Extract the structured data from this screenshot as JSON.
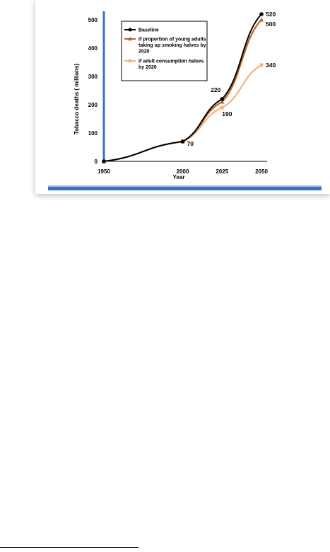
{
  "chart_data": {
    "type": "line",
    "x": [
      1950,
      2000,
      2025,
      2050
    ],
    "xlabel": "Year",
    "ylabel": "Tobacco deaths ( millions)",
    "ylim": [
      0,
      520
    ],
    "yticks": [
      0,
      100,
      200,
      300,
      400,
      500
    ],
    "xtick_labels": [
      "1950",
      "2000",
      "2025",
      "2050"
    ],
    "legend_position": "top-left",
    "series": [
      {
        "name": "Baseline",
        "values": [
          0,
          70,
          220,
          520
        ],
        "color": "#000000",
        "marker": "circle"
      },
      {
        "name": "If proportion of young adults taking up smoking halves by 2020",
        "values": [
          0,
          70,
          210,
          500
        ],
        "color": "#c0632a",
        "marker": "triangle"
      },
      {
        "name": "If adult consumption halves by 2020",
        "values": [
          0,
          70,
          190,
          340
        ],
        "color": "#f2b47c",
        "marker": "square"
      }
    ],
    "data_labels": [
      {
        "x": 2000,
        "y": 70,
        "text": "70"
      },
      {
        "x": 2025,
        "y": 220,
        "text": "220"
      },
      {
        "x": 2025,
        "y": 190,
        "text": "190"
      },
      {
        "x": 2050,
        "y": 520,
        "text": "520"
      },
      {
        "x": 2050,
        "y": 500,
        "text": "500"
      },
      {
        "x": 2050,
        "y": 340,
        "text": "340"
      }
    ],
    "legend_lines": [
      [
        "Baseline"
      ],
      [
        "If proportion of young adults",
        "taking up smoking halves by",
        "2020"
      ],
      [
        "If adult consumption halves",
        "by 2020"
      ]
    ],
    "colors": {
      "axis": "#3a6fc4",
      "bottom_bar": "#3a6fc4",
      "bottom_bar_light": "#9ebbe6"
    }
  }
}
